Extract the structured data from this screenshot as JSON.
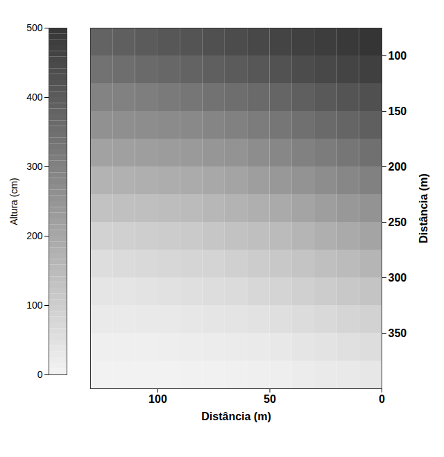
{
  "chart_data": {
    "type": "heatmap",
    "x_label": "Distância (m)",
    "y_label": "Distância (m)",
    "xlim": [
      0,
      130
    ],
    "xticks": [
      0,
      50,
      100
    ],
    "ylim": [
      75,
      400
    ],
    "yticks": [
      100,
      150,
      200,
      250,
      300,
      350
    ],
    "x_bins": [
      0,
      10,
      20,
      30,
      40,
      50,
      60,
      70,
      80,
      90,
      100,
      110,
      120,
      130
    ],
    "y_bins": [
      75,
      100,
      125,
      150,
      175,
      200,
      225,
      250,
      275,
      300,
      325,
      350,
      375,
      400
    ],
    "z": [
      [
        500,
        490,
        480,
        470,
        460,
        450,
        440,
        430,
        420,
        410,
        400,
        390,
        380
      ],
      [
        470,
        460,
        450,
        440,
        425,
        410,
        400,
        390,
        380,
        370,
        360,
        350,
        340
      ],
      [
        430,
        420,
        405,
        390,
        375,
        360,
        350,
        340,
        330,
        320,
        310,
        300,
        295
      ],
      [
        390,
        375,
        360,
        345,
        330,
        315,
        300,
        290,
        280,
        275,
        270,
        265,
        260
      ],
      [
        345,
        330,
        315,
        300,
        285,
        270,
        255,
        245,
        235,
        230,
        225,
        220,
        215
      ],
      [
        300,
        285,
        270,
        255,
        240,
        225,
        210,
        200,
        190,
        185,
        180,
        175,
        170
      ],
      [
        255,
        240,
        225,
        210,
        195,
        180,
        170,
        160,
        150,
        145,
        140,
        135,
        130
      ],
      [
        210,
        195,
        180,
        165,
        150,
        140,
        130,
        120,
        110,
        105,
        100,
        95,
        90
      ],
      [
        165,
        150,
        140,
        125,
        115,
        105,
        95,
        85,
        80,
        75,
        70,
        65,
        60
      ],
      [
        125,
        115,
        105,
        95,
        85,
        75,
        65,
        60,
        55,
        50,
        45,
        40,
        40
      ],
      [
        90,
        80,
        70,
        62,
        55,
        48,
        42,
        38,
        34,
        30,
        28,
        25,
        25
      ],
      [
        60,
        52,
        45,
        38,
        32,
        27,
        23,
        20,
        18,
        16,
        14,
        12,
        12
      ],
      [
        35,
        30,
        25,
        20,
        16,
        13,
        10,
        8,
        7,
        6,
        5,
        4,
        4
      ]
    ],
    "colorbar": {
      "label": "Altura (cm)",
      "range": [
        0,
        500
      ],
      "ticks": [
        0,
        100,
        200,
        300,
        400,
        500
      ]
    }
  }
}
